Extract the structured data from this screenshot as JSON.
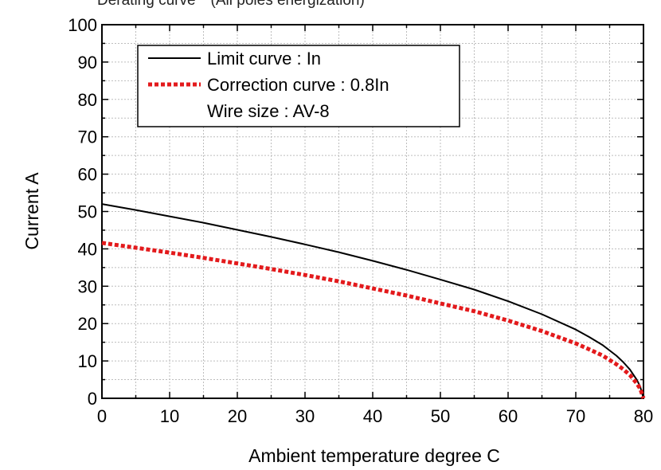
{
  "chart_data": {
    "type": "line",
    "title": "Derating curve　(All poles energization)",
    "xlabel": "Ambient temperature  degree C",
    "ylabel": "Current  A",
    "xlim": [
      0,
      80
    ],
    "ylim": [
      0,
      100
    ],
    "xticks": [
      "0",
      "10",
      "20",
      "30",
      "40",
      "50",
      "60",
      "70",
      "80"
    ],
    "yticks": [
      "0",
      "10",
      "20",
      "30",
      "40",
      "50",
      "60",
      "70",
      "80",
      "90",
      "100"
    ],
    "grid": true,
    "legend_position": "top-left",
    "legend_note": "Wire size : AV-8",
    "series": [
      {
        "name": "Limit curve : In",
        "color": "#000000",
        "style": "solid",
        "x": [
          0,
          5,
          10,
          15,
          20,
          25,
          30,
          35,
          40,
          45,
          50,
          55,
          60,
          65,
          70,
          72,
          74,
          76,
          77,
          78,
          79,
          79.5,
          80
        ],
        "y": [
          52,
          50.4,
          48.7,
          47,
          45.1,
          43.2,
          41.2,
          39.1,
          36.8,
          34.4,
          31.8,
          29.1,
          26,
          22.5,
          18.4,
          16.4,
          14.2,
          11.4,
          9.7,
          7.7,
          5,
          3.2,
          0
        ]
      },
      {
        "name": "Correction curve : 0.8In",
        "color": "#e31a1c",
        "style": "dotted",
        "x": [
          0,
          5,
          10,
          15,
          20,
          25,
          30,
          35,
          40,
          45,
          50,
          55,
          60,
          65,
          70,
          72,
          74,
          76,
          77,
          78,
          79,
          79.5,
          80
        ],
        "y": [
          41.6,
          40.3,
          39,
          37.6,
          36.1,
          34.6,
          33,
          31.3,
          29.4,
          27.5,
          25.4,
          23.3,
          20.8,
          18,
          14.7,
          13.1,
          11.4,
          9.1,
          7.8,
          6.2,
          4,
          2.6,
          0
        ]
      }
    ]
  }
}
